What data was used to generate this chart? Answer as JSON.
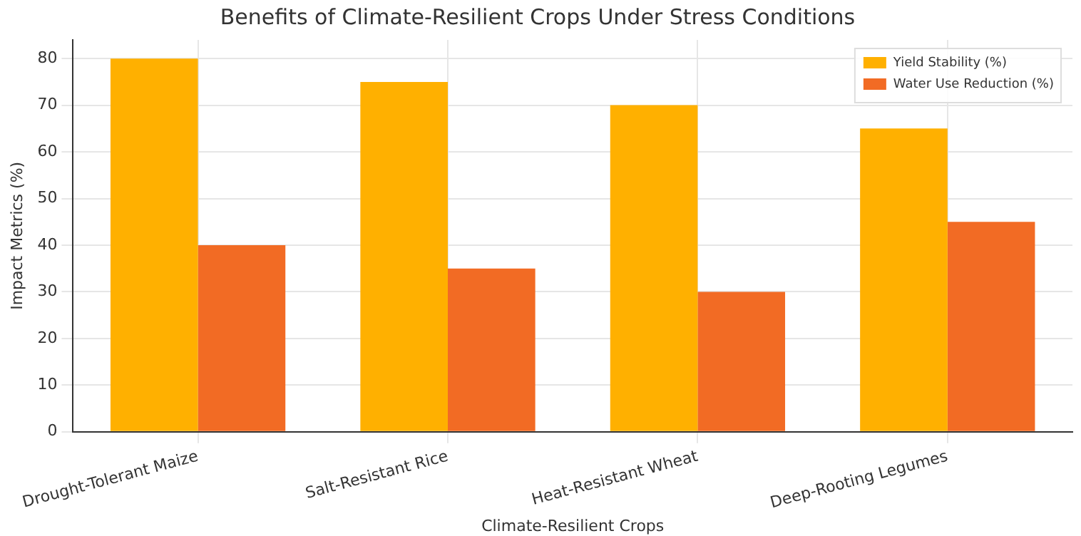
{
  "chart_data": {
    "type": "bar",
    "title": "Benefits of Climate-Resilient Crops Under Stress Conditions",
    "xlabel": "Climate-Resilient Crops",
    "ylabel": "Impact Metrics (%)",
    "categories": [
      "Drought-Tolerant Maize",
      "Salt-Resistant Rice",
      "Heat-Resistant Wheat",
      "Deep-Rooting Legumes"
    ],
    "series": [
      {
        "name": "Yield Stability (%)",
        "color": "#ffb000",
        "values": [
          80,
          75,
          70,
          65
        ]
      },
      {
        "name": "Water Use Reduction (%)",
        "color": "#f26b24",
        "values": [
          40,
          35,
          30,
          45
        ]
      }
    ],
    "ylim": [
      0,
      84
    ],
    "yticks": [
      0,
      10,
      20,
      30,
      40,
      50,
      60,
      70,
      80
    ],
    "grid": true,
    "legend": "top right"
  }
}
